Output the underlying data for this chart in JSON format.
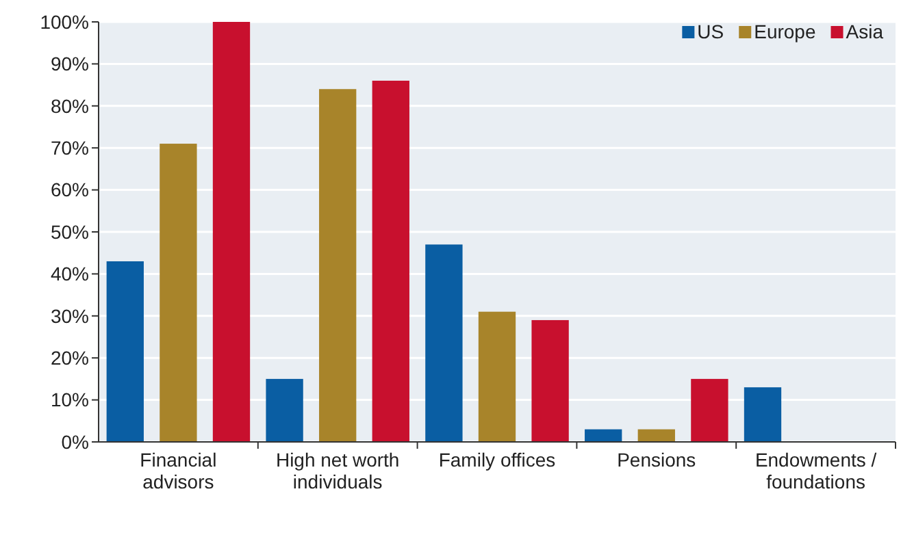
{
  "chart_data": {
    "type": "bar",
    "categories": [
      "Financial advisors",
      "High net worth individuals",
      "Family offices",
      "Pensions",
      "Endowments / foundations"
    ],
    "series": [
      {
        "name": "US",
        "color": "#0a5ea3",
        "values": [
          43,
          15,
          47,
          3,
          13
        ]
      },
      {
        "name": "Europe",
        "color": "#a8842a",
        "values": [
          71,
          84,
          31,
          3,
          0
        ]
      },
      {
        "name": "Asia",
        "color": "#c8102e",
        "values": [
          100,
          86,
          29,
          15,
          0
        ]
      }
    ],
    "ylim": [
      0,
      100
    ],
    "yticks": [
      {
        "value": 0,
        "label": "0%"
      },
      {
        "value": 10,
        "label": "10%"
      },
      {
        "value": 20,
        "label": "20%"
      },
      {
        "value": 30,
        "label": "30%"
      },
      {
        "value": 40,
        "label": "40%"
      },
      {
        "value": 50,
        "label": "50%"
      },
      {
        "value": 60,
        "label": "60%"
      },
      {
        "value": 70,
        "label": "70%"
      },
      {
        "value": 80,
        "label": "80%"
      },
      {
        "value": 90,
        "label": "90%"
      },
      {
        "value": 100,
        "label": "100%"
      }
    ],
    "grid": "y",
    "legend": "top right"
  }
}
